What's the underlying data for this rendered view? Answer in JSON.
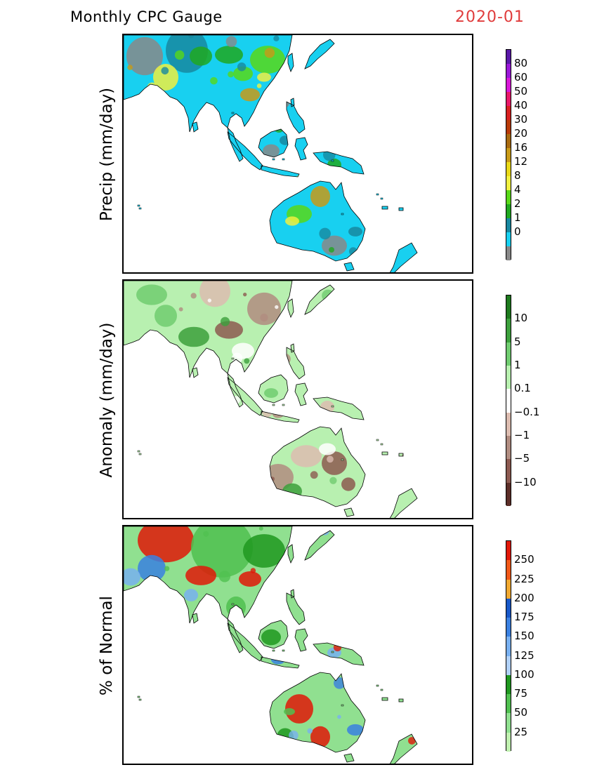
{
  "header": {
    "title": "Monthly CPC Gauge",
    "date": "2020-01"
  },
  "panels": [
    {
      "ylabel": "Precip (mm/day)",
      "colorbar": {
        "labels": [
          "80",
          "60",
          "50",
          "40",
          "30",
          "20",
          "16",
          "12",
          "8",
          "4",
          "2",
          "1",
          "0"
        ],
        "colors": [
          "#5a18a8",
          "#9a18d8",
          "#d818d8",
          "#e81868",
          "#d82020",
          "#b83a08",
          "#a86a10",
          "#c89a18",
          "#e8d818",
          "#f0f040",
          "#58d818",
          "#20a820",
          "#1888a0",
          "#18d0f0",
          "#888888"
        ]
      },
      "land": {
        "base": "#18d0f0",
        "palette": [
          "#888888",
          "#1888a0",
          "#20a820",
          "#58d818",
          "#f0f040",
          "#c89a18"
        ]
      }
    },
    {
      "ylabel": "Anomaly (mm/day)",
      "colorbar": {
        "labels": [
          "10",
          "5",
          "1",
          "0.1",
          "−0.1",
          "−1",
          "−5",
          "−10"
        ],
        "colors": [
          "#1e7a1e",
          "#3ca03c",
          "#70cc70",
          "#b8f0b0",
          "#ffffff",
          "#dcbcb0",
          "#b08c80",
          "#8c5a50",
          "#5c2e28"
        ]
      },
      "land": {
        "base": "#b8f0b0",
        "palette": [
          "#70cc70",
          "#dcbcb0",
          "#b08c80",
          "#8c5a50",
          "#ffffff",
          "#3ca03c"
        ]
      }
    },
    {
      "ylabel": "% of Normal",
      "colorbar": {
        "labels": [
          "250",
          "225",
          "200",
          "175",
          "150",
          "125",
          "100",
          "75",
          "50",
          "25"
        ],
        "colors": [
          "#e01808",
          "#f05818",
          "#f0a830",
          "#1858c8",
          "#3a80e0",
          "#78b0f0",
          "#b0d0f8",
          "#209820",
          "#50c050",
          "#90e090",
          "#c0f0b0"
        ]
      },
      "land": {
        "base": "#90e090",
        "palette": [
          "#e01808",
          "#50c050",
          "#209820",
          "#3a80e0",
          "#78b0f0",
          "#e01808"
        ]
      }
    }
  ]
}
